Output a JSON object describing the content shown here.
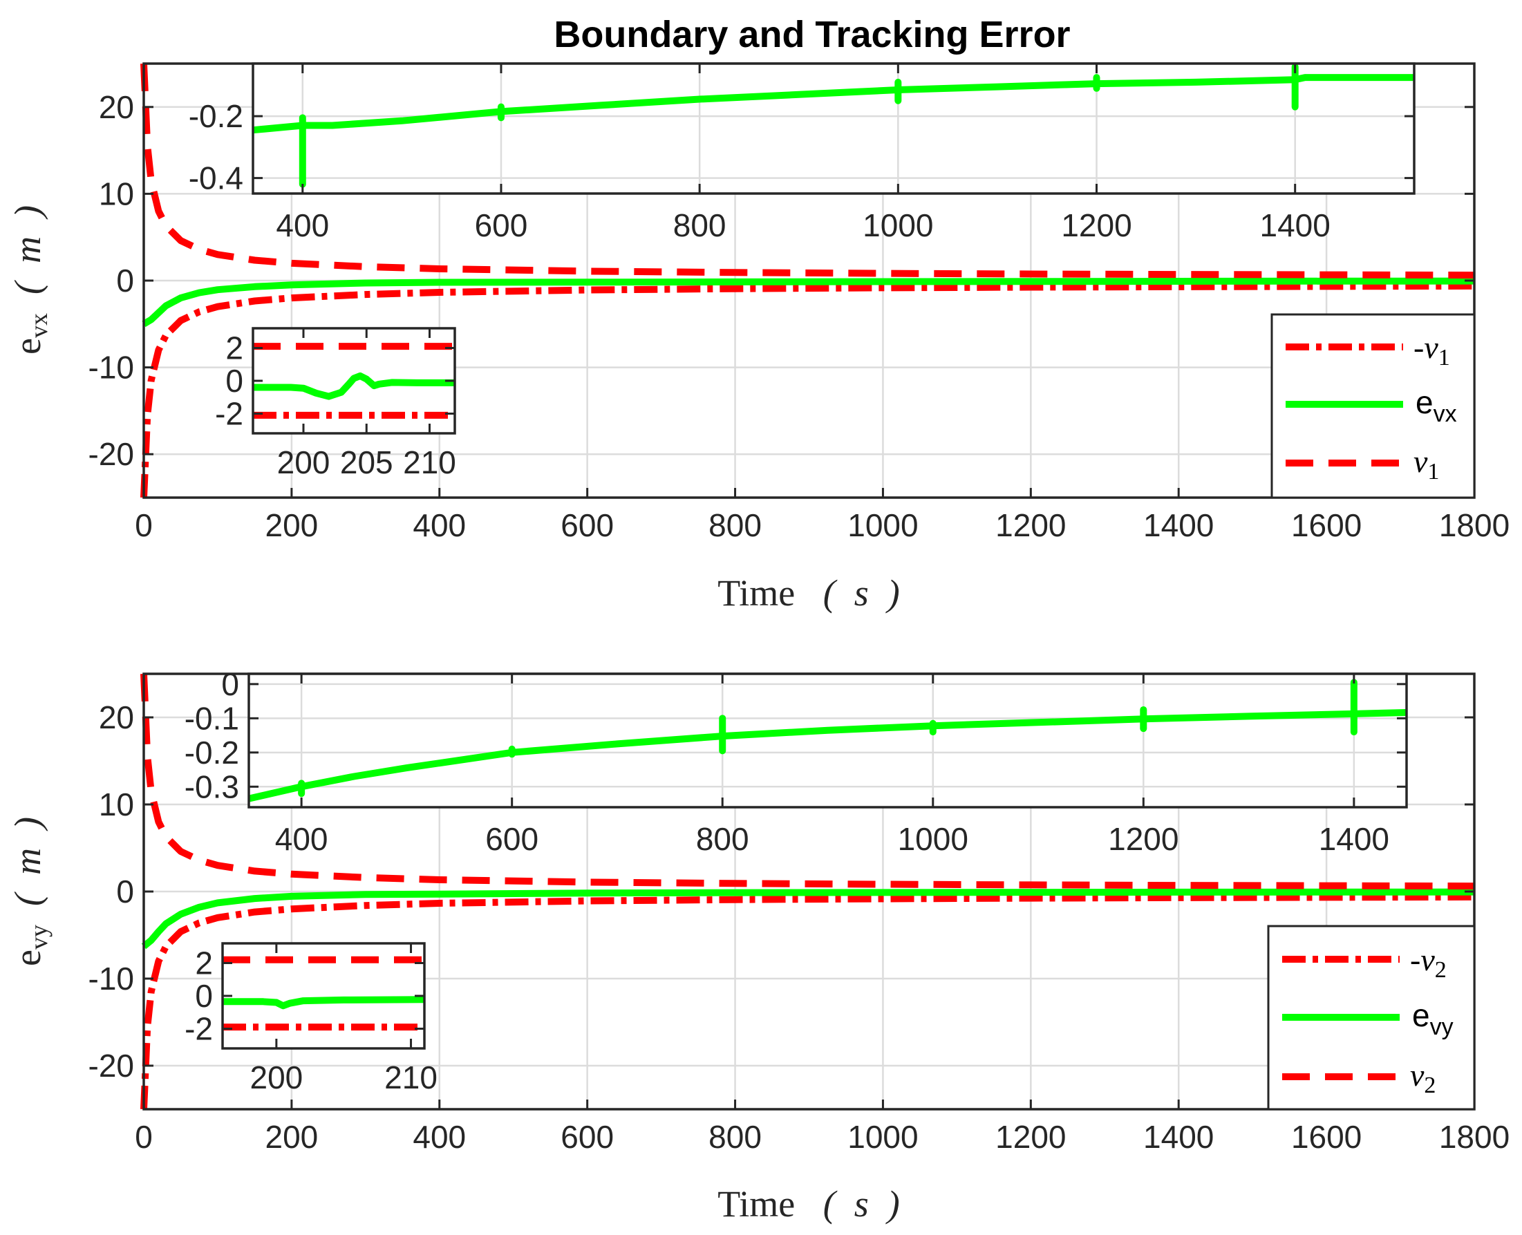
{
  "title": "Boundary and Tracking Error",
  "colors": {
    "error": "#00ff00",
    "bound": "#ff0000",
    "axis": "#262626",
    "grid": "#dcdcdc"
  },
  "chart_data": [
    {
      "type": "line",
      "title": "Boundary and Tracking Error",
      "xlabel": "Time  ( s )",
      "ylabel": "e_vx ( m )",
      "xlim": [
        0,
        1800
      ],
      "ylim": [
        -25,
        25
      ],
      "xticks": [
        0,
        200,
        400,
        600,
        800,
        1000,
        1200,
        1400,
        1600,
        1800
      ],
      "yticks": [
        -20,
        -10,
        0,
        10,
        20
      ],
      "grid": true,
      "legend_position": "bottom-right",
      "series": [
        {
          "name": "-ν1",
          "style": "dash-dot",
          "color": "#ff0000",
          "x": [
            0,
            5,
            10,
            20,
            30,
            50,
            75,
            100,
            150,
            200,
            300,
            400,
            600,
            800,
            1000,
            1200,
            1400,
            1600,
            1800
          ],
          "y": [
            -25,
            -15.5,
            -11.5,
            -8.0,
            -6.3,
            -4.6,
            -3.6,
            -3.0,
            -2.35,
            -2.0,
            -1.6,
            -1.35,
            -1.08,
            -0.93,
            -0.83,
            -0.76,
            -0.71,
            -0.67,
            -0.63
          ]
        },
        {
          "name": "e_vx",
          "style": "solid",
          "color": "#00ff00",
          "x": [
            0,
            10,
            20,
            30,
            50,
            75,
            100,
            150,
            200,
            300,
            400,
            600,
            800,
            1000,
            1200,
            1400,
            1600,
            1800
          ],
          "y": [
            -5.0,
            -4.5,
            -3.7,
            -2.9,
            -2.0,
            -1.4,
            -1.05,
            -0.7,
            -0.5,
            -0.28,
            -0.2,
            -0.18,
            -0.15,
            -0.12,
            -0.1,
            -0.08,
            -0.06,
            -0.05
          ]
        },
        {
          "name": "ν1",
          "style": "dashed",
          "color": "#ff0000",
          "x": [
            0,
            5,
            10,
            20,
            30,
            50,
            75,
            100,
            150,
            200,
            300,
            400,
            600,
            800,
            1000,
            1200,
            1400,
            1600,
            1800
          ],
          "y": [
            25,
            15.5,
            11.5,
            8.0,
            6.3,
            4.6,
            3.6,
            3.0,
            2.35,
            2.0,
            1.6,
            1.35,
            1.08,
            0.93,
            0.83,
            0.76,
            0.71,
            0.67,
            0.63
          ]
        }
      ],
      "insets": [
        {
          "xlim": [
            350,
            1520
          ],
          "ylim": [
            -0.45,
            -0.03
          ],
          "xticks": [
            400,
            600,
            800,
            1000,
            1200,
            1400
          ],
          "yticks": [
            -0.4,
            -0.2
          ],
          "series": [
            {
              "color": "#00ff00",
              "x": [
                350,
                400,
                430,
                500,
                600,
                700,
                800,
                900,
                1000,
                1100,
                1200,
                1300,
                1400,
                1410,
                1450,
                1520
              ],
              "y": [
                -0.245,
                -0.23,
                -0.23,
                -0.215,
                -0.185,
                -0.165,
                -0.145,
                -0.13,
                -0.115,
                -0.105,
                -0.095,
                -0.09,
                -0.082,
                -0.075,
                -0.075,
                -0.075
              ]
            }
          ],
          "spikes": [
            {
              "x": 400,
              "ymin": -0.42,
              "ymax": -0.205
            },
            {
              "x": 600,
              "ymin": -0.205,
              "ymax": -0.17
            },
            {
              "x": 1000,
              "ymin": -0.15,
              "ymax": -0.09
            },
            {
              "x": 1200,
              "ymin": -0.11,
              "ymax": -0.075
            },
            {
              "x": 1400,
              "ymin": -0.17,
              "ymax": -0.04
            }
          ]
        },
        {
          "xlim": [
            196,
            212
          ],
          "ylim": [
            -3.2,
            3.2
          ],
          "xticks": [
            200,
            205,
            210
          ],
          "yticks": [
            -2,
            0,
            2
          ],
          "series": [
            {
              "color": "#ff0000",
              "style": "dashed",
              "x": [
                196,
                212
              ],
              "y": [
                2.1,
                2.1
              ]
            },
            {
              "color": "#00ff00",
              "style": "solid",
              "x": [
                196,
                199,
                200,
                201,
                202,
                203,
                203.6,
                204,
                204.5,
                205,
                205.6,
                206,
                207,
                209,
                212
              ],
              "y": [
                -0.4,
                -0.4,
                -0.45,
                -0.75,
                -0.95,
                -0.7,
                -0.2,
                0.15,
                0.3,
                0.1,
                -0.3,
                -0.2,
                -0.1,
                -0.12,
                -0.12
              ]
            },
            {
              "color": "#ff0000",
              "style": "dash-dot",
              "x": [
                196,
                212
              ],
              "y": [
                -2.1,
                -2.1
              ]
            }
          ]
        }
      ]
    },
    {
      "type": "line",
      "xlabel": "Time  ( s )",
      "ylabel": "e_vy ( m )",
      "xlim": [
        0,
        1800
      ],
      "ylim": [
        -25,
        25
      ],
      "xticks": [
        0,
        200,
        400,
        600,
        800,
        1000,
        1200,
        1400,
        1600,
        1800
      ],
      "yticks": [
        -20,
        -10,
        0,
        10,
        20
      ],
      "grid": true,
      "legend_position": "bottom-right",
      "series": [
        {
          "name": "-ν2",
          "style": "dash-dot",
          "color": "#ff0000",
          "x": [
            0,
            5,
            10,
            20,
            30,
            50,
            75,
            100,
            150,
            200,
            300,
            400,
            600,
            800,
            1000,
            1200,
            1400,
            1600,
            1800
          ],
          "y": [
            -25,
            -15.5,
            -11.5,
            -8.0,
            -6.3,
            -4.6,
            -3.6,
            -3.0,
            -2.35,
            -2.0,
            -1.6,
            -1.35,
            -1.08,
            -0.93,
            -0.83,
            -0.76,
            -0.71,
            -0.67,
            -0.63
          ]
        },
        {
          "name": "e_vy",
          "style": "solid",
          "color": "#00ff00",
          "x": [
            0,
            10,
            20,
            30,
            50,
            75,
            100,
            150,
            200,
            300,
            400,
            600,
            800,
            1000,
            1200,
            1400,
            1600,
            1800
          ],
          "y": [
            -6.3,
            -5.6,
            -4.6,
            -3.7,
            -2.6,
            -1.8,
            -1.3,
            -0.8,
            -0.55,
            -0.33,
            -0.3,
            -0.18,
            -0.13,
            -0.11,
            -0.09,
            -0.07,
            -0.06,
            -0.05
          ]
        },
        {
          "name": "ν2",
          "style": "dashed",
          "color": "#ff0000",
          "x": [
            0,
            5,
            10,
            20,
            30,
            50,
            75,
            100,
            150,
            200,
            300,
            400,
            600,
            800,
            1000,
            1200,
            1400,
            1600,
            1800
          ],
          "y": [
            25,
            15.5,
            11.5,
            8.0,
            6.3,
            4.6,
            3.6,
            3.0,
            2.35,
            2.0,
            1.6,
            1.35,
            1.08,
            0.93,
            0.83,
            0.76,
            0.71,
            0.67,
            0.63
          ]
        }
      ],
      "insets": [
        {
          "xlim": [
            350,
            1450
          ],
          "ylim": [
            -0.36,
            0.03
          ],
          "xticks": [
            400,
            600,
            800,
            1000,
            1200,
            1400
          ],
          "yticks": [
            -0.3,
            -0.2,
            -0.1,
            0
          ],
          "series": [
            {
              "color": "#00ff00",
              "x": [
                350,
                400,
                450,
                500,
                600,
                700,
                800,
                900,
                1000,
                1100,
                1200,
                1300,
                1400,
                1450
              ],
              "y": [
                -0.335,
                -0.3,
                -0.27,
                -0.245,
                -0.2,
                -0.175,
                -0.152,
                -0.135,
                -0.122,
                -0.112,
                -0.102,
                -0.094,
                -0.087,
                -0.083
              ]
            }
          ],
          "spikes": [
            {
              "x": 400,
              "ymin": -0.32,
              "ymax": -0.29
            },
            {
              "x": 600,
              "ymin": -0.205,
              "ymax": -0.19
            },
            {
              "x": 800,
              "ymin": -0.195,
              "ymax": -0.1
            },
            {
              "x": 1000,
              "ymin": -0.14,
              "ymax": -0.115
            },
            {
              "x": 1200,
              "ymin": -0.13,
              "ymax": -0.075
            },
            {
              "x": 1400,
              "ymin": -0.14,
              "ymax": 0.005
            }
          ]
        },
        {
          "xlim": [
            196,
            211
          ],
          "ylim": [
            -3.2,
            3.2
          ],
          "xticks": [
            200,
            210
          ],
          "yticks": [
            -2,
            0,
            2
          ],
          "series": [
            {
              "color": "#ff0000",
              "style": "dashed",
              "x": [
                196,
                211
              ],
              "y": [
                2.2,
                2.2
              ]
            },
            {
              "color": "#00ff00",
              "style": "solid",
              "x": [
                196,
                199,
                200,
                200.5,
                201,
                202,
                205,
                211
              ],
              "y": [
                -0.35,
                -0.35,
                -0.4,
                -0.6,
                -0.45,
                -0.3,
                -0.25,
                -0.22
              ]
            },
            {
              "color": "#ff0000",
              "style": "dash-dot",
              "x": [
                196,
                211
              ],
              "y": [
                -1.9,
                -1.9
              ]
            }
          ]
        }
      ]
    }
  ]
}
